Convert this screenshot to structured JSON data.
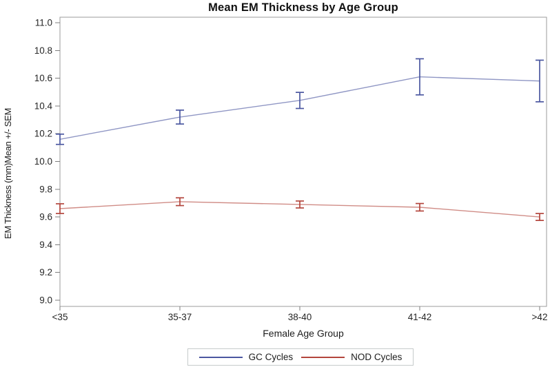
{
  "chart_data": {
    "type": "line",
    "title": "Mean EM Thickness by Age Group",
    "xlabel": "Female Age Group",
    "ylabel": "EM Thickness (mm)Mean +/- SEM",
    "categories": [
      "<35",
      "35-37",
      "38-40",
      "41-42",
      ">42"
    ],
    "ylim": [
      9.0,
      11.0
    ],
    "y_ticks": [
      "9.0",
      "9.2",
      "9.4",
      "9.6",
      "9.8",
      "10.0",
      "10.2",
      "10.4",
      "10.6",
      "10.8",
      "11.0"
    ],
    "grid": false,
    "error_bars": "SEM",
    "legend_position": "bottom",
    "series": [
      {
        "name": "GC Cycles",
        "color": "#4a56a0",
        "values": [
          10.16,
          10.32,
          10.44,
          10.61,
          10.58
        ],
        "sem": [
          0.037,
          0.05,
          0.058,
          0.13,
          0.15
        ]
      },
      {
        "name": "NOD Cycles",
        "color": "#b3453c",
        "values": [
          9.66,
          9.71,
          9.69,
          9.67,
          9.6
        ],
        "sem": [
          0.035,
          0.028,
          0.025,
          0.027,
          0.025
        ]
      }
    ],
    "frame_color": "#9b9b9b",
    "tick_label_color": "#262626"
  }
}
